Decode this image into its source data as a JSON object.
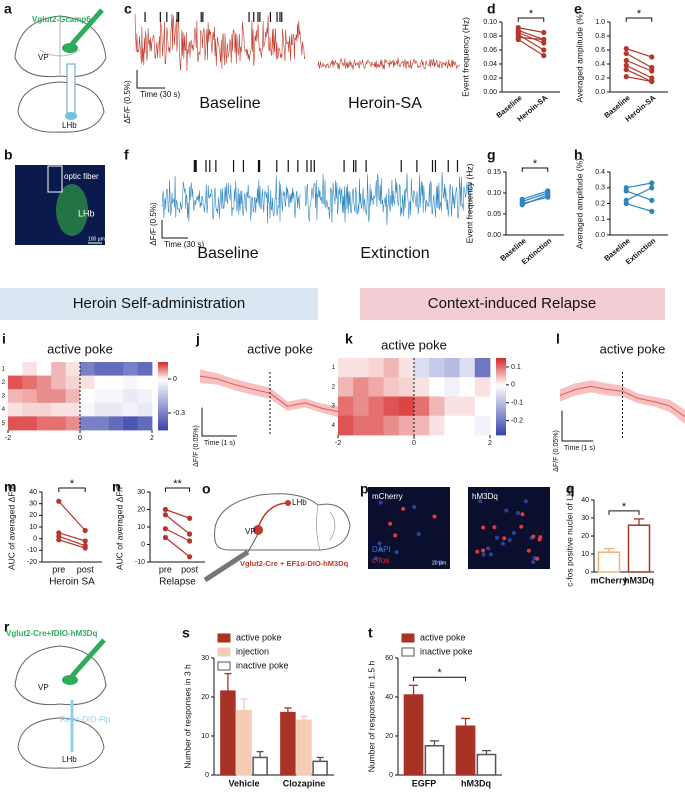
{
  "figure": {
    "a": {
      "panel": "a",
      "labels": [
        "Vglut2-Gcamp6s",
        "VP",
        "LHb"
      ]
    },
    "b": {
      "panel": "b",
      "labels": [
        "optic fiber",
        "LHb",
        "100 µm"
      ]
    },
    "c": {
      "panel": "c",
      "scale_y": "ΔF/F (0.5%)",
      "scale_x": "Time (30 s)",
      "conditions": [
        "Baseline",
        "Heroin-SA"
      ]
    },
    "f": {
      "panel": "f",
      "scale_y": "ΔF/F (0.5%)",
      "scale_x": "Time (30 s)",
      "conditions": [
        "Baseline",
        "Extinction"
      ]
    },
    "banners": [
      "Heroin Self-administration",
      "Context-induced Relapse"
    ],
    "o": {
      "panel": "o",
      "labels": [
        "VP",
        "LHb",
        "Vglut2-Cre + EF1α-DIO-hM3Dq"
      ]
    },
    "p": {
      "panel": "p",
      "images": [
        "mCherry",
        "hM3Dq"
      ],
      "stains": [
        "DAPI",
        "c-fos"
      ],
      "scale": "20 µm"
    },
    "r": {
      "panel": "r",
      "labels": [
        "Vglut2-Cre+fDIO-hM3Dq",
        "VP",
        "Retro-DIO-Flp",
        "LHb"
      ]
    }
  },
  "chart_data": [
    {
      "type": "paired",
      "panel": "d",
      "ylabel": "Event frequency (Hz)",
      "categories": [
        "Baseline",
        "Heroin-SA"
      ],
      "values": [
        [
          0.092,
          0.085
        ],
        [
          0.088,
          0.075
        ],
        [
          0.085,
          0.07
        ],
        [
          0.082,
          0.06
        ],
        [
          0.078,
          0.075
        ],
        [
          0.075,
          0.052
        ]
      ],
      "color": "#b5372b",
      "ylim": [
        0,
        0.1
      ],
      "yticks": [
        {
          "value": 0,
          "label": "0.00"
        },
        0.02,
        0.04,
        0.06,
        0.08,
        {
          "value": 0.1,
          "label": "0.10"
        }
      ],
      "significance": "*"
    },
    {
      "type": "paired",
      "panel": "e",
      "ylabel": "Averaged amplitude (%)",
      "categories": [
        "Baseline",
        "Heroin-SA"
      ],
      "values": [
        [
          0.62,
          0.5
        ],
        [
          0.55,
          0.35
        ],
        [
          0.45,
          0.3
        ],
        [
          0.38,
          0.2
        ],
        [
          0.32,
          0.15
        ],
        [
          0.22,
          0.15
        ]
      ],
      "color": "#b5372b",
      "ylim": [
        0,
        1
      ],
      "yticks": [
        {
          "value": 0,
          "label": "0.0"
        },
        0.2,
        0.4,
        0.6,
        0.8,
        {
          "value": 1,
          "label": "1.0"
        }
      ],
      "significance": "*"
    },
    {
      "type": "paired",
      "panel": "g",
      "ylabel": "Event frequency (Hz)",
      "categories": [
        "Baseline",
        "Extinction"
      ],
      "values": [
        [
          0.085,
          0.105
        ],
        [
          0.08,
          0.1
        ],
        [
          0.075,
          0.09
        ],
        [
          0.072,
          0.095
        ]
      ],
      "color": "#2e86c1",
      "ylim": [
        0,
        0.15
      ],
      "yticks": [
        {
          "value": 0,
          "label": "0.00"
        },
        0.05,
        {
          "value": 0.1,
          "label": "0.10"
        },
        0.15
      ],
      "significance": "*"
    },
    {
      "type": "paired",
      "panel": "h",
      "ylabel": "Averaged amplitude (%)",
      "categories": [
        "Baseline",
        "Extinction"
      ],
      "values": [
        [
          0.3,
          0.33
        ],
        [
          0.28,
          0.22
        ],
        [
          0.22,
          0.3
        ],
        [
          0.2,
          0.15
        ]
      ],
      "color": "#2e86c1",
      "ylim": [
        0,
        0.4
      ],
      "yticks": [
        {
          "value": 0,
          "label": "0.0"
        },
        0.1,
        0.2,
        0.3,
        0.4
      ]
    },
    {
      "type": "heatmap",
      "panel": "i",
      "title": "active poke",
      "rows": [
        "1",
        "2",
        "3",
        "4",
        "5"
      ],
      "values": [
        [
          0,
          0.02,
          0,
          0.05,
          0.02,
          -0.3,
          -0.35,
          -0.35,
          -0.3,
          -0.35
        ],
        [
          0.12,
          0.1,
          0.08,
          0.05,
          0.03,
          0.02,
          0,
          0,
          -0.02,
          0
        ],
        [
          0.05,
          0.06,
          0.08,
          0.08,
          0.05,
          0,
          -0.02,
          -0.02,
          -0.05,
          -0.03
        ],
        [
          0.02,
          0.03,
          0.03,
          0.02,
          0.02,
          -0.02,
          -0.05,
          -0.05,
          -0.03,
          -0.05
        ],
        [
          0.12,
          0.12,
          0.1,
          0.1,
          0.08,
          -0.3,
          -0.3,
          -0.35,
          -0.4,
          -0.35
        ]
      ],
      "xlim": [
        -2,
        2
      ],
      "xticks": [
        -2,
        0,
        2
      ],
      "event_x": 0,
      "zlim": [
        -0.45,
        0.15
      ],
      "zticks": [
        0,
        -0.3
      ]
    },
    {
      "type": "line",
      "panel": "j",
      "title": "active poke",
      "x": [
        -2,
        -1.5,
        -1,
        -0.5,
        0,
        0.5,
        1,
        1.5,
        2
      ],
      "values": [
        0.035,
        0.03,
        0.02,
        0.012,
        0.005,
        -0.018,
        -0.012,
        -0.022,
        -0.028
      ],
      "errors": [
        0.012,
        0.01,
        0.01,
        0.01,
        0.01,
        0.008,
        0.008,
        0.008,
        0.01
      ],
      "xlim": [
        -2,
        2
      ],
      "ylim": [
        -0.06,
        0.06
      ],
      "event_x": 0,
      "color": "#e05a5a",
      "band_color": "#f7c1c1",
      "scale_bar": {
        "y": 0.05,
        "x": 1,
        "y_label": "ΔF/F (0.05%)",
        "x_label": "Time (1 s)"
      }
    },
    {
      "type": "heatmap",
      "panel": "k",
      "title": "active poke",
      "rows": [
        "1",
        "2",
        "3",
        "4"
      ],
      "values": [
        [
          0.02,
          0.02,
          0.03,
          0.05,
          0.02,
          -0.05,
          -0.08,
          -0.1,
          -0.05,
          -0.2
        ],
        [
          0.05,
          0.08,
          0.06,
          0.04,
          0.03,
          0.02,
          0,
          -0.02,
          0,
          0.02
        ],
        [
          0.1,
          0.08,
          0.1,
          0.12,
          0.13,
          0.1,
          0.05,
          0.02,
          0.02,
          0
        ],
        [
          0.12,
          0.1,
          0.1,
          0.08,
          0.06,
          0.05,
          0.02,
          0,
          0,
          -0.02
        ]
      ],
      "xlim": [
        -2,
        2
      ],
      "xticks": [
        -2,
        0,
        2
      ],
      "event_x": 0,
      "zlim": [
        -0.28,
        0.15
      ],
      "zticks": [
        0.1,
        0,
        -0.1,
        -0.2
      ]
    },
    {
      "type": "line",
      "panel": "l",
      "title": "active poke",
      "x": [
        -2,
        -1.5,
        -1,
        -0.5,
        0,
        0.5,
        1,
        1.5,
        2
      ],
      "values": [
        0.005,
        0.015,
        0.02,
        0.015,
        0.012,
        0,
        -0.005,
        -0.012,
        -0.03
      ],
      "errors": [
        0.01,
        0.01,
        0.01,
        0.01,
        0.009,
        0.008,
        0.008,
        0.01,
        0.012
      ],
      "xlim": [
        -2,
        2
      ],
      "ylim": [
        -0.06,
        0.06
      ],
      "event_x": 0,
      "color": "#e05a5a",
      "band_color": "#f7c1c1",
      "scale_bar": {
        "y": 0.05,
        "x": 1,
        "y_label": "ΔF/F (0.05%)",
        "x_label": "Time (1 s)"
      }
    },
    {
      "type": "paired",
      "panel": "m",
      "ylabel": "AUC of averaged ΔF/F",
      "xlabel": "Heroin SA",
      "categories": [
        "pre",
        "post"
      ],
      "values": [
        [
          32,
          7
        ],
        [
          5,
          -2
        ],
        [
          2,
          -6
        ],
        [
          -1,
          -8
        ]
      ],
      "color": "#b5372b",
      "ylim": [
        -20,
        40
      ],
      "yticks": [
        -20,
        -10,
        0,
        10,
        20,
        30,
        40
      ],
      "significance": "*"
    },
    {
      "type": "paired",
      "panel": "n",
      "ylabel": "AUC of averaged ΔF/F",
      "xlabel": "Relapse",
      "categories": [
        "pre",
        "post"
      ],
      "values": [
        [
          20,
          15
        ],
        [
          17,
          6
        ],
        [
          9,
          2
        ],
        [
          4,
          -7
        ]
      ],
      "color": "#b5372b",
      "ylim": [
        -10,
        30
      ],
      "yticks": [
        -10,
        0,
        10,
        20,
        30
      ],
      "significance": "**"
    },
    {
      "type": "bar",
      "panel": "q",
      "ylabel": "c-fos positive nuclei of LHb",
      "categories": [
        "mCherry",
        "hM3Dq"
      ],
      "values": [
        11,
        26
      ],
      "errors": [
        2,
        3.5
      ],
      "colors": [
        "#f0b27a",
        "#a93226"
      ],
      "fill": "#ffffff",
      "ylim": [
        0,
        40
      ],
      "yticks": [
        0,
        10,
        20,
        30,
        40
      ],
      "significance": "*"
    },
    {
      "type": "bar",
      "panel": "s",
      "ylabel": "Number of responses in 3 h",
      "categories": [
        "Vehicle",
        "Clozapine"
      ],
      "series": [
        {
          "name": "active poke",
          "color": "#a93226",
          "fill": "#a93226",
          "values": [
            21.5,
            16
          ],
          "errors": [
            4.5,
            1.2
          ]
        },
        {
          "name": "injection",
          "color": "#f5cbb3",
          "fill": "#f5cbb3",
          "values": [
            16.5,
            14
          ],
          "errors": [
            3,
            1
          ]
        },
        {
          "name": "inactive poke",
          "color": "#555555",
          "fill": "#ffffff",
          "values": [
            4.5,
            3.5
          ],
          "errors": [
            1.5,
            1
          ]
        }
      ],
      "ylim": [
        0,
        30
      ],
      "yticks": [
        0,
        10,
        20,
        30
      ],
      "legend": "upper left"
    },
    {
      "type": "bar",
      "panel": "t",
      "ylabel": "Number of responses in 1.5 h",
      "categories": [
        "EGFP",
        "hM3Dq"
      ],
      "series": [
        {
          "name": "active poke",
          "color": "#a93226",
          "fill": "#a93226",
          "values": [
            41,
            25
          ],
          "errors": [
            5,
            4
          ]
        },
        {
          "name": "inactive poke",
          "color": "#555555",
          "fill": "#ffffff",
          "values": [
            15,
            10.5
          ],
          "errors": [
            2.5,
            2
          ]
        }
      ],
      "ylim": [
        0,
        60
      ],
      "yticks": [
        0,
        20,
        40,
        60
      ],
      "legend": "upper left",
      "significance": "*"
    }
  ]
}
